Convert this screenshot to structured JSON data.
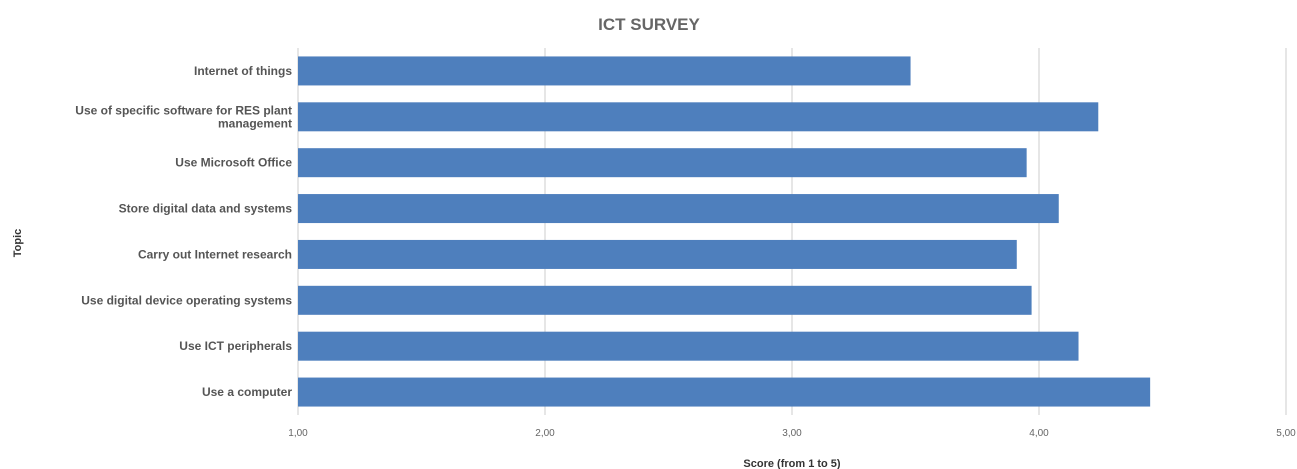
{
  "chart_data": {
    "type": "bar",
    "orientation": "horizontal",
    "title": "ICT SURVEY",
    "xlabel": "Score (from 1 to 5)",
    "ylabel": "Topic",
    "categories": [
      "Internet of things",
      "Use of specific software for RES plant management",
      "Use Microsoft Office",
      "Store digital data and systems",
      "Carry out Internet research",
      "Use digital device operating systems",
      "Use ICT peripherals",
      "Use a computer"
    ],
    "category_lines": [
      [
        "Internet of things"
      ],
      [
        "Use of specific software for RES plant",
        "management"
      ],
      [
        "Use Microsoft Office"
      ],
      [
        "Store digital data and systems"
      ],
      [
        "Carry out Internet research"
      ],
      [
        "Use digital device operating systems"
      ],
      [
        "Use ICT peripherals"
      ],
      [
        "Use a computer"
      ]
    ],
    "values": [
      3.48,
      4.24,
      3.95,
      4.08,
      3.91,
      3.97,
      4.16,
      4.45
    ],
    "xlim": [
      1,
      5
    ],
    "xticks": [
      1,
      2,
      3,
      4,
      5
    ],
    "xtick_labels": [
      "1,00",
      "2,00",
      "3,00",
      "4,00",
      "5,00"
    ],
    "grid": true,
    "bar_color": "#4e7fbd",
    "grid_color": "#cccccc"
  }
}
